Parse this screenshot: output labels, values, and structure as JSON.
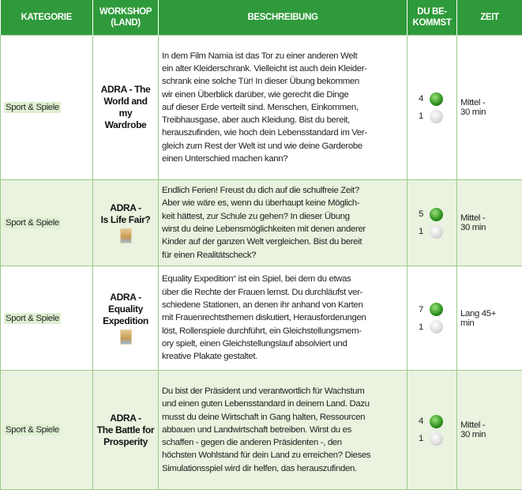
{
  "table": {
    "headers": [
      [
        "KATEGORIE"
      ],
      [
        "WORKSHOP",
        "(LAND)"
      ],
      [
        "BESCHREIBUNG"
      ],
      [
        "DU BE-",
        "KOMMST"
      ],
      [
        "ZEIT"
      ]
    ],
    "rows": [
      {
        "category": "Sport & Spiele",
        "workshop": [
          "ADRA - The",
          "World and my",
          "Wardrobe"
        ],
        "description": [
          "In dem Film Narnia ist das Tor zu einer anderen Welt",
          "ein alter Kleiderschrank. Vielleicht ist auch dein Kleider-",
          "schrank eine solche Tür! In dieser Übung bekommen",
          "wir einen Überblick darüber, wie gerecht die Dinge",
          "auf dieser Erde verteilt sind. Menschen, Einkommen,",
          "Treibhausgase, aber auch Kleidung. Bist du bereit,",
          "herauszufinden, wie hoch dein Lebensstandard im Ver-",
          "gleich zum Rest der Welt ist und wie deine Garderobe",
          "einen Unterschied machen kann?"
        ],
        "green": 4,
        "white": 1,
        "time": [
          "Mittel -",
          "30 min"
        ]
      },
      {
        "category": "Sport & Spiele",
        "workshop": [
          "ADRA -",
          "Is Life Fair?"
        ],
        "description": [
          "Endlich Ferien! Freust du dich auf die schulfreie Zeit?",
          "Aber wie wäre es, wenn du überhaupt keine Möglich-",
          "keit hättest, zur Schule zu gehen? In dieser Übung",
          "wirst du deine Lebensmöglichkeiten mit denen anderer",
          "Kinder auf der ganzen Welt vergleichen. Bist du bereit",
          "für einen Realitätscheck?"
        ],
        "green": 5,
        "white": 1,
        "time": [
          "Mittel -",
          "30 min"
        ]
      },
      {
        "category": "Sport & Spiele",
        "workshop": [
          "ADRA -",
          "Equality",
          "Expedition"
        ],
        "description": [
          "Equality Expedition“ ist ein Spiel, bei dem du etwas",
          "über die Rechte der Frauen lernst. Du durchläufst ver-",
          "schiedene Stationen, an denen ihr anhand von Karten",
          "mit Frauenrechtsthemen diskutiert, Herausforderungen",
          "löst, Rollenspiele durchführt, ein Gleichstellungsmem-",
          "ory spielt, einen Gleichstellungslauf absolviert und",
          "kreative Plakate gestaltet."
        ],
        "green": 7,
        "white": 1,
        "time": [
          "Lang 45+",
          "min"
        ]
      },
      {
        "category": "Sport & Spiele",
        "workshop": [
          "ADRA -",
          "The Battle for",
          "Prosperity"
        ],
        "description": [
          "Du bist der Präsident und verantwortlich für Wachstum",
          "und einen guten Lebensstandard in deinem Land. Dazu",
          "musst du deine Wirtschaft in Gang halten, Ressourcen",
          "abbauen und Landwirtschaft betreiben. Wirst du es",
          "schaffen - gegen die anderen Präsidenten -, den",
          "höchsten Wohlstand für dein Land zu erreichen? Dieses",
          "Simulationsspiel wird dir helfen, das herauszufinden."
        ],
        "green": 4,
        "white": 1,
        "time": [
          "Mittel -",
          "30 min"
        ]
      }
    ]
  }
}
